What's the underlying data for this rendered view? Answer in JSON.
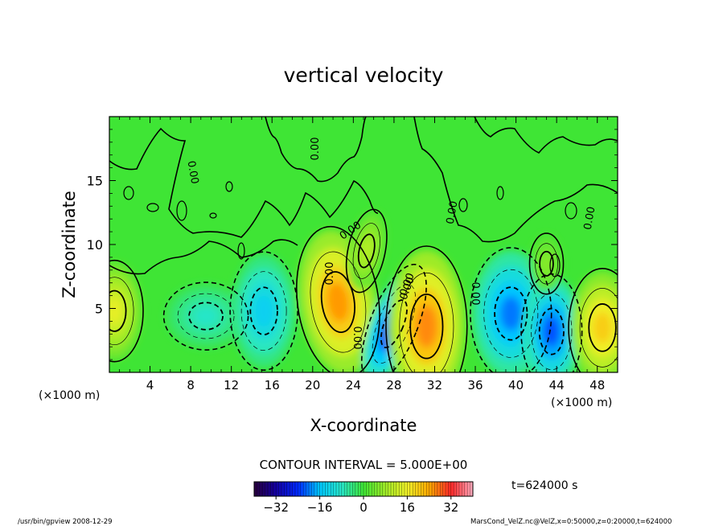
{
  "chart_data": {
    "type": "heatmap",
    "title": "vertical velocity",
    "xlabel": "X-coordinate",
    "ylabel": "Z-coordinate",
    "x_unit_label": "(×1000 m)",
    "xlim": [
      0,
      50
    ],
    "ylim": [
      0,
      20
    ],
    "x_ticks": [
      "4",
      "8",
      "12",
      "16",
      "20",
      "24",
      "28",
      "32",
      "36",
      "40",
      "44",
      "48"
    ],
    "y_ticks": [
      "5",
      "10",
      "15"
    ],
    "contour_interval_label": "CONTOUR INTERVAL = 5.000E+00",
    "time_label": "t=624000 s",
    "contour_labels": [
      "0.00",
      "0.00",
      "0.00",
      "0.00",
      "0.00",
      "0.00",
      "0.00",
      "0.00",
      "0.00",
      "0.00"
    ],
    "colorbar": {
      "range": [
        -40,
        40
      ],
      "ticks": [
        "−32",
        "−16",
        "0",
        "16",
        "32"
      ],
      "tick_values": [
        -32,
        -16,
        0,
        16,
        32
      ]
    },
    "features": [
      {
        "kind": "updraft",
        "x": 0.5,
        "z": 4.8,
        "value": 15
      },
      {
        "kind": "downdraft",
        "x": 9.5,
        "z": 4.4,
        "value": -8
      },
      {
        "kind": "downdraft",
        "x": 15.2,
        "z": 4.8,
        "value": -14
      },
      {
        "kind": "updraft",
        "x": 22.5,
        "z": 5.5,
        "value": 25
      },
      {
        "kind": "updraft",
        "x": 25.3,
        "z": 9.5,
        "value": 10
      },
      {
        "kind": "downdraft",
        "x": 28.0,
        "z": 3.8,
        "value": -28
      },
      {
        "kind": "updraft",
        "x": 31.2,
        "z": 3.6,
        "value": 26
      },
      {
        "kind": "downdraft",
        "x": 39.5,
        "z": 4.6,
        "value": -20
      },
      {
        "kind": "downdraft",
        "x": 43.5,
        "z": 3.2,
        "value": -22
      },
      {
        "kind": "updraft",
        "x": 48.5,
        "z": 3.5,
        "value": 20
      },
      {
        "kind": "updraft",
        "x": 43.0,
        "z": 8.5,
        "value": 6
      }
    ]
  },
  "footer": {
    "left": "/usr/bin/gpview  2008-12-29",
    "right": "MarsCond_VelZ.nc@VelZ,x=0:50000,z=0:20000,t=624000"
  },
  "colors": {
    "background": "#3fe535",
    "frame": "#000000"
  }
}
